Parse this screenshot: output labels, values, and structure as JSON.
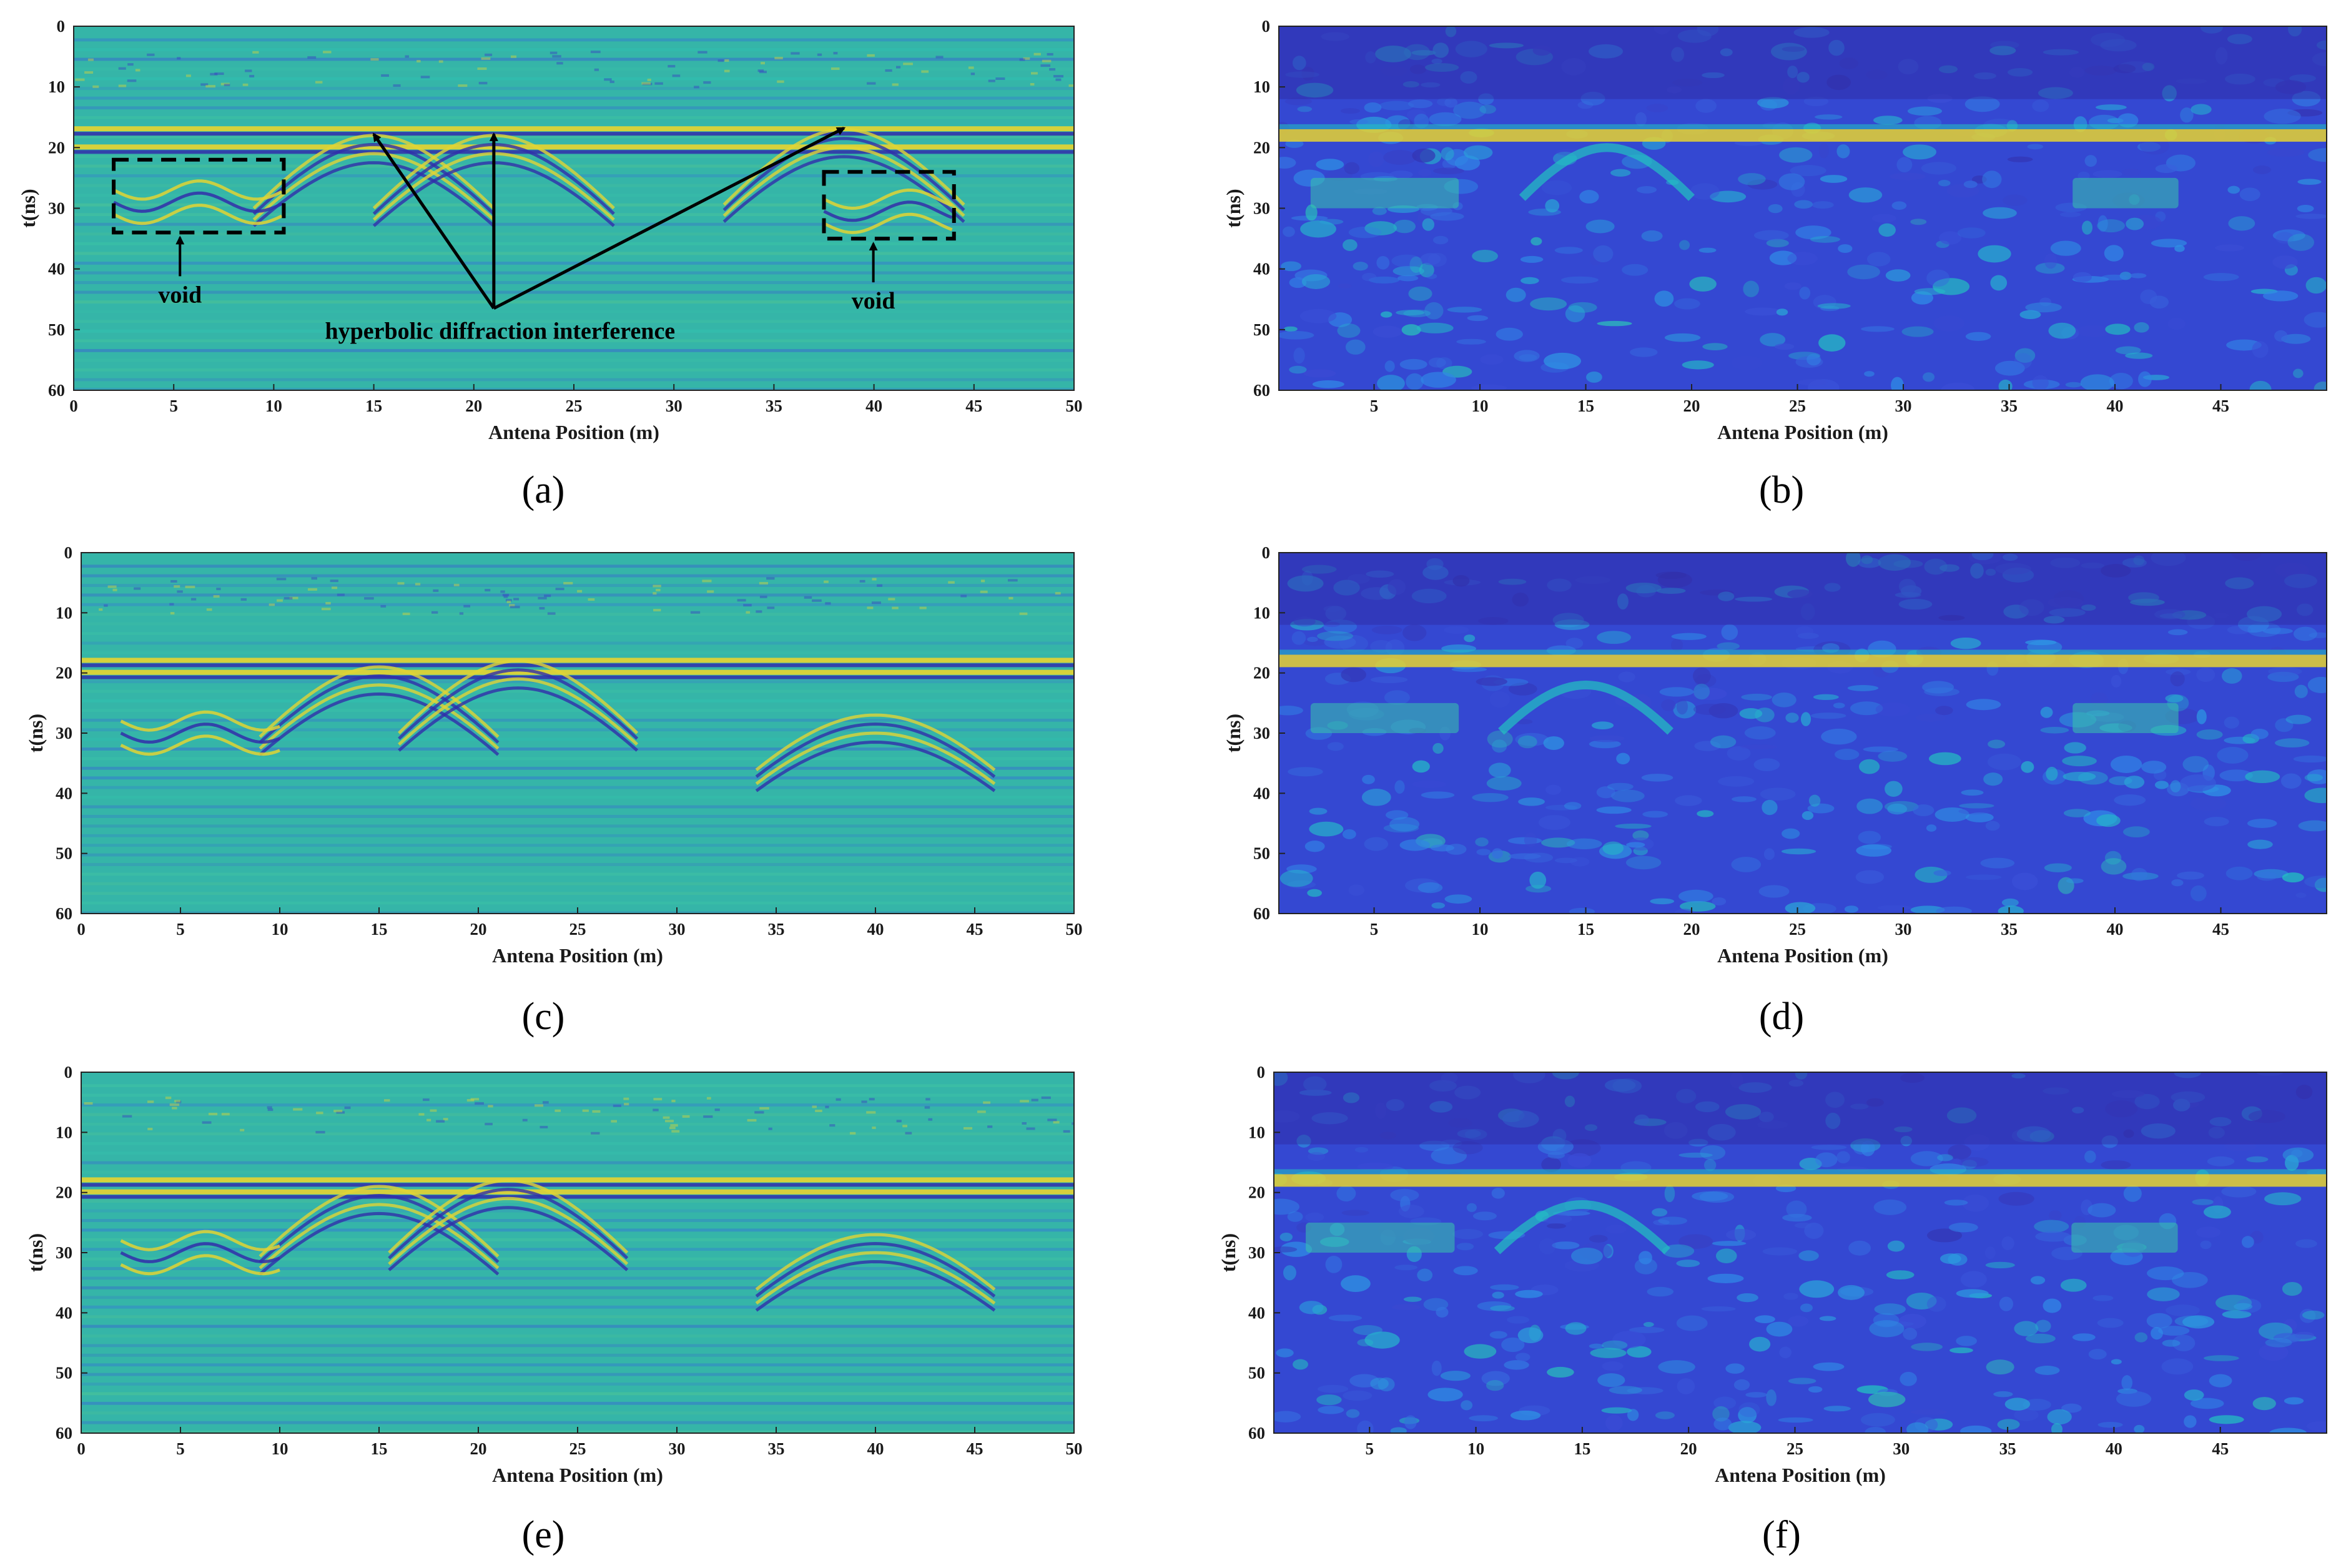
{
  "figure": {
    "captions": [
      "(a)",
      "(b)",
      "(c)",
      "(d)",
      "(e)",
      "(f)"
    ],
    "colormap": [
      "#2b1a8c",
      "#3b4cd6",
      "#2f8fe8",
      "#22c3c0",
      "#7fd26a",
      "#f2d42a"
    ]
  },
  "chart_data": [
    {
      "id": "a",
      "type": "heatmap",
      "style": "bscan",
      "xlabel": "Antena Position (m)",
      "ylabel": "t(ns)",
      "xlim": [
        0,
        50
      ],
      "ylim": [
        0,
        60
      ],
      "y_inverted": true,
      "xticks": [
        0,
        5,
        10,
        15,
        20,
        25,
        30,
        35,
        40,
        45,
        50
      ],
      "yticks": [
        0,
        10,
        20,
        30,
        40,
        50,
        60
      ],
      "features": {
        "layers_ns": [
          17,
          20
        ],
        "hyperbolas": [
          {
            "x": 15,
            "t": 18
          },
          {
            "x": 21,
            "t": 18
          },
          {
            "x": 38.5,
            "t": 17
          }
        ],
        "voids": [
          {
            "x": [
              2,
              10.5
            ],
            "t": [
              22,
              34
            ]
          },
          {
            "x": [
              37.5,
              44
            ],
            "t": [
              24,
              35
            ]
          }
        ]
      },
      "annotations": {
        "void_left": "void",
        "void_right": "void",
        "diffraction": "hyperbolic diffraction interference"
      },
      "caption": "(a)"
    },
    {
      "id": "b",
      "type": "heatmap",
      "style": "energy",
      "xlabel": "Antena Position (m)",
      "ylabel": "t(ns)",
      "xlim": [
        0.5,
        50
      ],
      "ylim": [
        0,
        60
      ],
      "y_inverted": true,
      "xticks": [
        5,
        10,
        15,
        20,
        25,
        30,
        35,
        40,
        45
      ],
      "yticks": [
        0,
        10,
        20,
        30,
        40,
        50,
        60
      ],
      "features": {
        "layers_ns": [
          18
        ],
        "hyperbolas": [
          {
            "x": 16,
            "t": 20
          }
        ],
        "voids": [
          {
            "x": [
              2,
              9
            ],
            "t": [
              25,
              30
            ]
          },
          {
            "x": [
              38,
              43
            ],
            "t": [
              25,
              30
            ]
          }
        ]
      },
      "caption": "(b)"
    },
    {
      "id": "c",
      "type": "heatmap",
      "style": "bscan",
      "xlabel": "Antena Position (m)",
      "ylabel": "t(ns)",
      "xlim": [
        0,
        50
      ],
      "ylim": [
        0,
        60
      ],
      "y_inverted": true,
      "xticks": [
        0,
        5,
        10,
        15,
        20,
        25,
        30,
        35,
        40,
        45,
        50
      ],
      "yticks": [
        0,
        10,
        20,
        30,
        40,
        50,
        60
      ],
      "features": {
        "layers_ns": [
          18,
          20
        ],
        "hyperbolas": [
          {
            "x": 15,
            "t": 19
          },
          {
            "x": 22,
            "t": 18
          },
          {
            "x": 40,
            "t": 27
          }
        ],
        "voids": [
          {
            "x": [
              2,
              10
            ],
            "t": [
              26,
              32
            ]
          }
        ]
      },
      "caption": "(c)"
    },
    {
      "id": "d",
      "type": "heatmap",
      "style": "energy",
      "xlabel": "Antena Position (m)",
      "ylabel": "t(ns)",
      "xlim": [
        0.5,
        50
      ],
      "ylim": [
        0,
        60
      ],
      "y_inverted": true,
      "xticks": [
        5,
        10,
        15,
        20,
        25,
        30,
        35,
        40,
        45
      ],
      "yticks": [
        0,
        10,
        20,
        30,
        40,
        50,
        60
      ],
      "features": {
        "layers_ns": [
          18
        ],
        "hyperbolas": [
          {
            "x": 15,
            "t": 22
          }
        ],
        "voids": [
          {
            "x": [
              2,
              9
            ],
            "t": [
              25,
              30
            ]
          },
          {
            "x": [
              38,
              43
            ],
            "t": [
              25,
              30
            ]
          }
        ]
      },
      "caption": "(d)"
    },
    {
      "id": "e",
      "type": "heatmap",
      "style": "bscan",
      "xlabel": "Antena Position (m)",
      "ylabel": "t(ns)",
      "xlim": [
        0,
        50
      ],
      "ylim": [
        0,
        60
      ],
      "y_inverted": true,
      "xticks": [
        0,
        5,
        10,
        15,
        20,
        25,
        30,
        35,
        40,
        45,
        50
      ],
      "yticks": [
        0,
        10,
        20,
        30,
        40,
        50,
        60
      ],
      "features": {
        "layers_ns": [
          18,
          20
        ],
        "hyperbolas": [
          {
            "x": 15,
            "t": 19
          },
          {
            "x": 21.5,
            "t": 18
          },
          {
            "x": 40,
            "t": 27
          }
        ],
        "voids": [
          {
            "x": [
              2,
              10
            ],
            "t": [
              26,
              32
            ]
          }
        ]
      },
      "caption": "(e)"
    },
    {
      "id": "f",
      "type": "heatmap",
      "style": "energy",
      "xlabel": "Antena Position (m)",
      "ylabel": "t(ns)",
      "xlim": [
        0.5,
        50
      ],
      "ylim": [
        0,
        60
      ],
      "y_inverted": true,
      "xticks": [
        5,
        10,
        15,
        20,
        25,
        30,
        35,
        40,
        45
      ],
      "yticks": [
        0,
        10,
        20,
        30,
        40,
        50,
        60
      ],
      "features": {
        "layers_ns": [
          18
        ],
        "hyperbolas": [
          {
            "x": 15,
            "t": 22
          }
        ],
        "voids": [
          {
            "x": [
              2,
              9
            ],
            "t": [
              25,
              30
            ]
          },
          {
            "x": [
              38,
              43
            ],
            "t": [
              25,
              30
            ]
          }
        ]
      },
      "caption": "(f)"
    }
  ]
}
